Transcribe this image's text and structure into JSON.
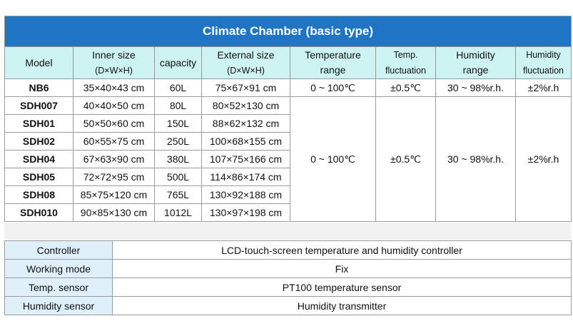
{
  "title": "Climate Chamber  (basic type)",
  "headers": {
    "model": "Model",
    "inner_size": "Inner size",
    "inner_size_sub": "(D×W×H)",
    "capacity": "capacity",
    "external_size": "External size",
    "external_size_sub": "(D×W×H)",
    "temperature_range": "Temperature",
    "temperature_range_sub": "range",
    "temp_fluctuation": "Temp.",
    "temp_fluctuation_sub": "fluctuation",
    "humidity_range": "Humidity",
    "humidity_range_sub": "range",
    "humidity_fluctuation": "Humidity",
    "humidity_fluctuation_sub": "fluctuation"
  },
  "nb6": {
    "model": "NB6",
    "inner_size": "35×40×43 cm",
    "capacity": "60L",
    "external_size": "75×67×91 cm",
    "temperature_range": "0 ~ 100℃",
    "temp_fluctuation": "±0.5℃",
    "humidity_range": "30 ~ 98%r.h.",
    "humidity_fluctuation": "±2%r.h"
  },
  "sdh_rows": [
    {
      "model": "SDH007",
      "inner_size": "40×40×50 cm",
      "capacity": "80L",
      "external_size": "80×52×130 cm"
    },
    {
      "model": "SDH01",
      "inner_size": "50×50×60 cm",
      "capacity": "150L",
      "external_size": "88×62×132 cm"
    },
    {
      "model": "SDH02",
      "inner_size": "60×55×75 cm",
      "capacity": "250L",
      "external_size": "100×68×155 cm"
    },
    {
      "model": "SDH04",
      "inner_size": "67×63×90 cm",
      "capacity": "380L",
      "external_size": "107×75×166 cm"
    },
    {
      "model": "SDH05",
      "inner_size": "72×72×95 cm",
      "capacity": "500L",
      "external_size": "114×86×174 cm"
    },
    {
      "model": "SDH08",
      "inner_size": "85×75×120 cm",
      "capacity": "765L",
      "external_size": "130×92×188 cm"
    },
    {
      "model": "SDH010",
      "inner_size": "90×85×130 cm",
      "capacity": "1012L",
      "external_size": "130×97×198 cm"
    }
  ],
  "sdh_shared": {
    "temperature_range": "0 ~ 100℃",
    "temp_fluctuation": "±0.5℃",
    "humidity_range": "30 ~ 98%r.h.",
    "humidity_fluctuation": "±2%r.h"
  },
  "info": [
    {
      "label": "Controller",
      "value": "LCD-touch-screen temperature and humidity controller"
    },
    {
      "label": "Working mode",
      "value": "Fix"
    },
    {
      "label": "Temp. sensor",
      "value": "PT100 temperature sensor"
    },
    {
      "label": "Humidity sensor",
      "value": "Humidity transmitter"
    }
  ]
}
